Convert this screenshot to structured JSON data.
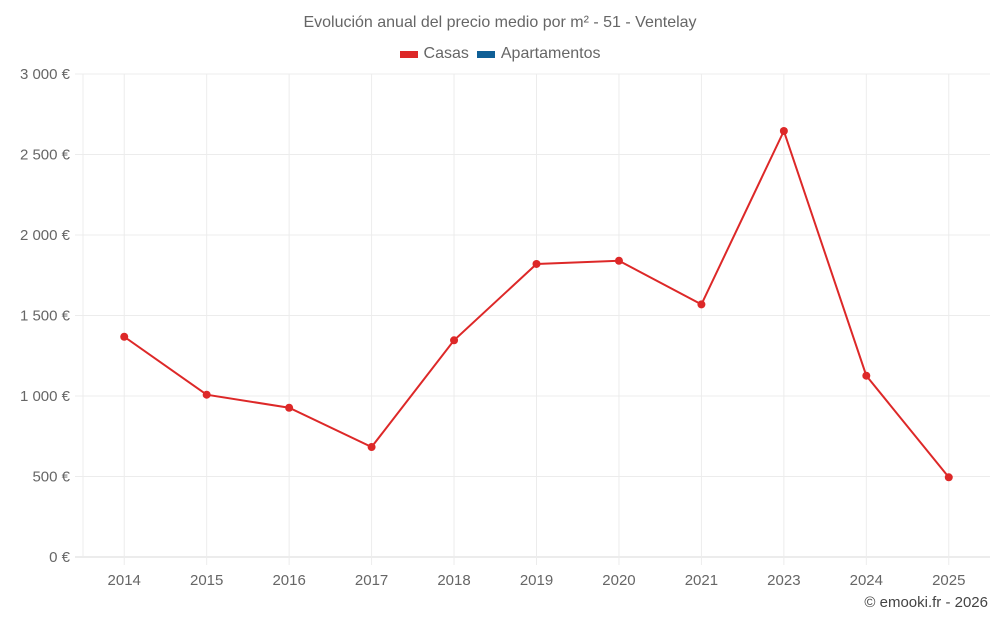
{
  "title": "Evolución anual del precio medio por m² - 51 - Ventelay",
  "legend": [
    {
      "label": "Casas",
      "color": "#dd2828"
    },
    {
      "label": "Apartamentos",
      "color": "#0f5f96"
    }
  ],
  "credit": "© emooki.fr - 2026",
  "chart_data": {
    "type": "line",
    "title": "Evolución anual del precio medio por m² - 51 - Ventelay",
    "xlabel": "",
    "ylabel": "",
    "categories": [
      "2014",
      "2015",
      "2016",
      "2017",
      "2018",
      "2019",
      "2020",
      "2021",
      "2023",
      "2024",
      "2025"
    ],
    "series": [
      {
        "name": "Casas",
        "color": "#dd2828",
        "values": [
          1368,
          1008,
          927,
          683,
          1346,
          1820,
          1840,
          1569,
          2646,
          1126,
          495
        ]
      },
      {
        "name": "Apartamentos",
        "color": "#0f5f96",
        "values": []
      }
    ],
    "ylim": [
      0,
      3000
    ],
    "yticks": [
      0,
      500,
      1000,
      1500,
      2000,
      2500,
      3000
    ],
    "ytick_labels": [
      "0 €",
      "500 €",
      "1 000 €",
      "1 500 €",
      "2 000 €",
      "2 500 €",
      "3 000 €"
    ],
    "grid": true,
    "legend_position": "top"
  }
}
